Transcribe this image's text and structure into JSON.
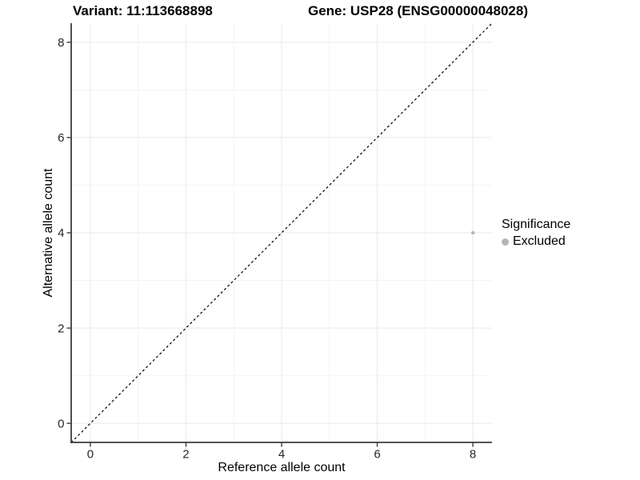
{
  "chart_data": {
    "type": "scatter",
    "titles": {
      "left": "Variant: 11:113668898",
      "right": "Gene: USP28 (ENSG00000048028)"
    },
    "xlabel": "Reference allele count",
    "ylabel": "Alternative allele count",
    "xlim": [
      -0.4,
      8.4
    ],
    "ylim": [
      -0.4,
      8.4
    ],
    "x_ticks": [
      0,
      2,
      4,
      6,
      8
    ],
    "y_ticks": [
      0,
      2,
      4,
      6,
      8
    ],
    "x_minor_ticks": [
      1,
      3,
      5,
      7
    ],
    "y_minor_ticks": [
      1,
      3,
      5,
      7
    ],
    "grid": "on",
    "series": [
      {
        "name": "Excluded",
        "color": "#b5b5b5",
        "points": [
          {
            "x": 8,
            "y": 4
          }
        ]
      }
    ],
    "reference_line": {
      "slope": 1,
      "intercept": 0,
      "style": "dashed",
      "color": "#000000"
    },
    "legend": {
      "title": "Significance",
      "position": "right",
      "items": [
        {
          "label": "Excluded",
          "color": "#b5b5b5"
        }
      ]
    },
    "colors": {
      "background": "#ffffff",
      "major_grid": "#e9e9e9",
      "minor_grid": "#f4f4f4",
      "axis": "#3c3c3c",
      "tick_label": "#262626"
    }
  }
}
